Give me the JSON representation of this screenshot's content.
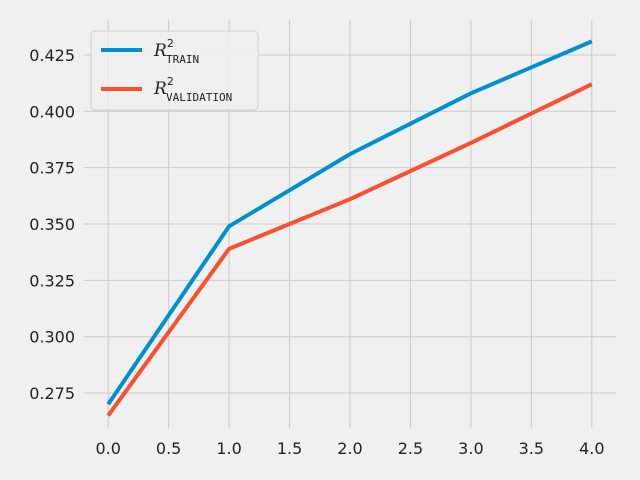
{
  "chart_data": {
    "type": "line",
    "title": "",
    "xlabel": "",
    "ylabel": "",
    "x": [
      0,
      1,
      2,
      3,
      4
    ],
    "series": [
      {
        "name": "R²_TRAIN",
        "label_main": "R",
        "label_sup": "2",
        "label_sub": "TRAIN",
        "color": "#008fd5",
        "values": [
          0.27,
          0.349,
          0.381,
          0.408,
          0.431
        ]
      },
      {
        "name": "R²_VALIDATION",
        "label_main": "R",
        "label_sup": "2",
        "label_sub": "VALIDATION",
        "color": "#fc4f30",
        "values": [
          0.265,
          0.339,
          0.361,
          0.386,
          0.412
        ]
      }
    ],
    "xlim": [
      -0.2,
      4.2
    ],
    "ylim": [
      0.2595,
      0.4405
    ],
    "xticks": [
      0.0,
      0.5,
      1.0,
      1.5,
      2.0,
      2.5,
      3.0,
      3.5,
      4.0
    ],
    "xtick_labels": [
      "0.0",
      "0.5",
      "1.0",
      "1.5",
      "2.0",
      "2.5",
      "3.0",
      "3.5",
      "4.0"
    ],
    "yticks": [
      0.275,
      0.3,
      0.325,
      0.35,
      0.375,
      0.4,
      0.425
    ],
    "ytick_labels": [
      "0.275",
      "0.300",
      "0.325",
      "0.350",
      "0.375",
      "0.400",
      "0.425"
    ],
    "grid": true,
    "legend": "top-left",
    "colors": {
      "background": "#f0f0f0",
      "grid": "#cbcbcb",
      "text": "#222222"
    }
  }
}
